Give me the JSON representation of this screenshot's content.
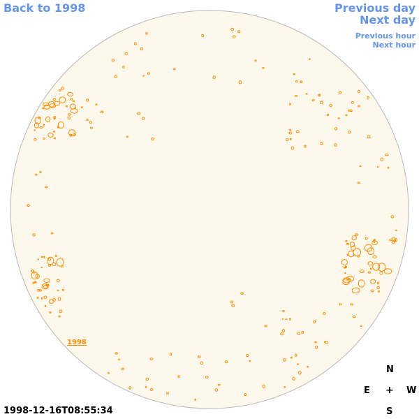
{
  "nav": {
    "back_label": "Back to 1998",
    "prev_day_label": "Previous day",
    "next_day_label": "Next day",
    "prev_hour_label": "Previous hour",
    "next_hour_label": "Next hour"
  },
  "disk": {
    "fill_color": "#fdf8ec",
    "edge_color": "#b8b8b8",
    "contour_color": "#ff8c00",
    "year_label": "1998"
  },
  "timestamp": "1998-12-16T08:55:34",
  "compass": {
    "north": "N",
    "east": "E",
    "center": "+",
    "west": "W",
    "south": "S"
  }
}
